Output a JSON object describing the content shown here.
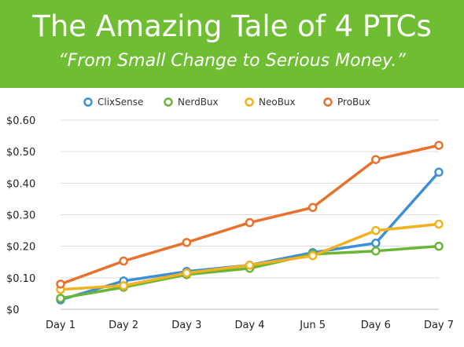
{
  "header": {
    "title": "The Amazing Tale of 4 PTCs",
    "subtitle": "“From Small Change to Serious Money.”"
  },
  "colors": {
    "banner": "#6fbd32",
    "ClixSense": "#3d8fd8",
    "NerdBux": "#6bb536",
    "NeoBux": "#f0b21e",
    "ProBux": "#e8712d"
  },
  "chart_data": {
    "type": "line",
    "title": "",
    "xlabel": "",
    "ylabel": "",
    "categories": [
      "Day 1",
      "Day 2",
      "Day 3",
      "Day 4",
      "Jun 5",
      "Day 6",
      "Day 7"
    ],
    "yticks": [
      "$0",
      "$0.10",
      "$0.20",
      "$0.30",
      "$0.40",
      "$0.50",
      "$0.60"
    ],
    "ylim": [
      0,
      0.6
    ],
    "grid": true,
    "legend_position": "top",
    "series": [
      {
        "name": "ClixSense",
        "color": "#3d8fd8",
        "values": [
          0.03,
          0.09,
          0.12,
          0.14,
          0.18,
          0.21,
          0.435
        ]
      },
      {
        "name": "NerdBux",
        "color": "#6bb536",
        "values": [
          0.035,
          0.07,
          0.11,
          0.13,
          0.175,
          0.185,
          0.2
        ]
      },
      {
        "name": "NeoBux",
        "color": "#f0b21e",
        "values": [
          0.063,
          0.075,
          0.115,
          0.14,
          0.17,
          0.25,
          0.27
        ]
      },
      {
        "name": "ProBux",
        "color": "#e8712d",
        "values": [
          0.08,
          0.153,
          0.212,
          0.275,
          0.323,
          0.475,
          0.52
        ]
      }
    ]
  }
}
